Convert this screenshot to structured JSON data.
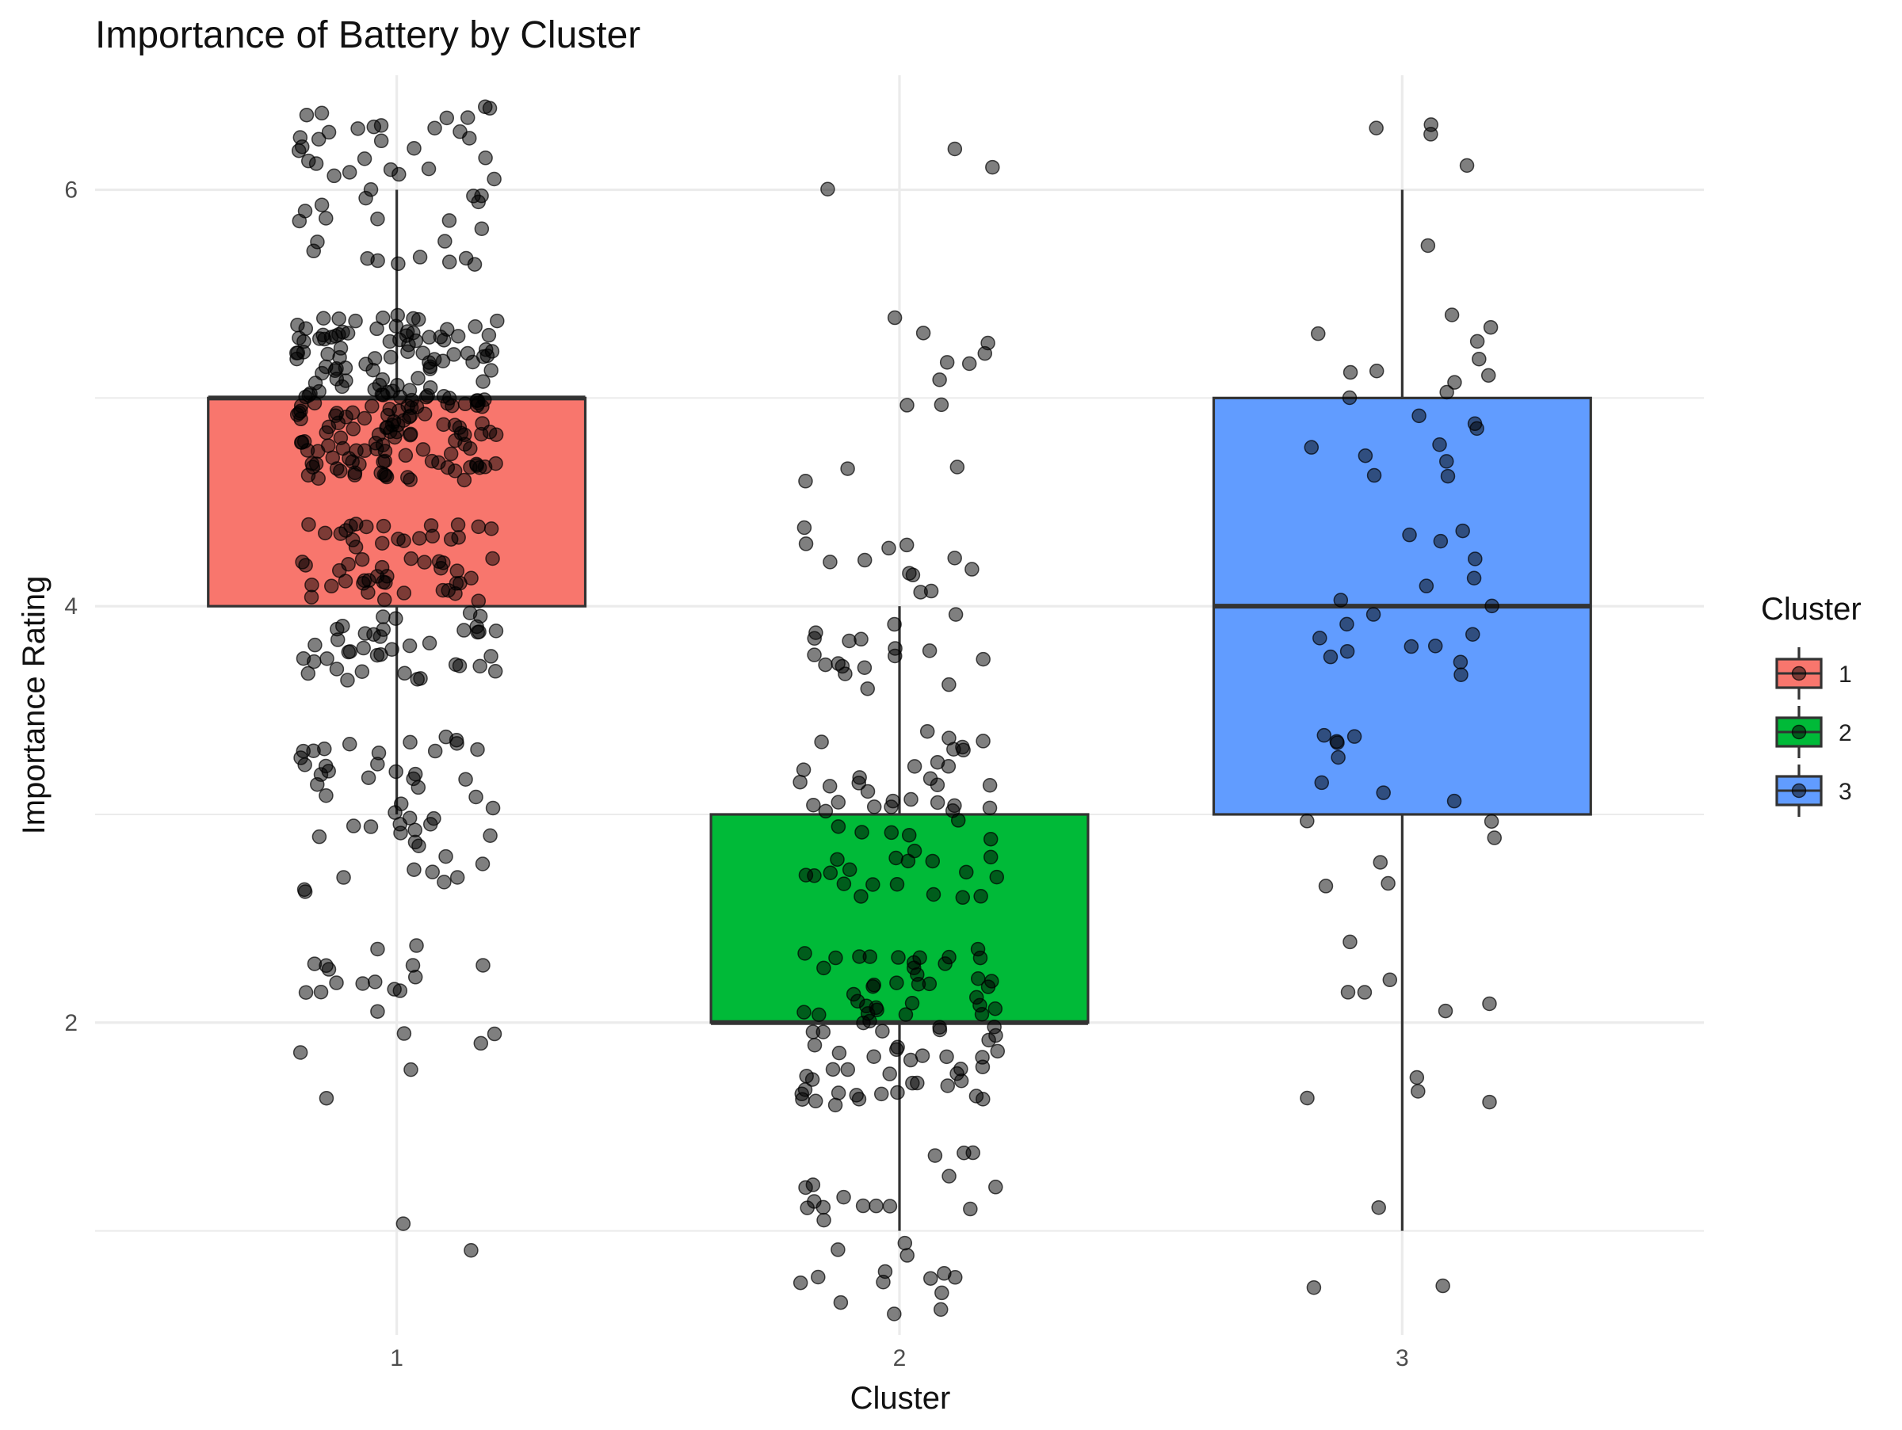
{
  "chart_data": {
    "type": "boxplot",
    "title": "Importance of Battery by Cluster",
    "xlabel": "Cluster",
    "ylabel": "Importance Rating",
    "categories": [
      "1",
      "2",
      "3"
    ],
    "y_ticks": [
      2,
      4,
      6
    ],
    "ylim": [
      0.5,
      6.55
    ],
    "grid": true,
    "legend": {
      "title": "Cluster",
      "placement": "right",
      "entries": [
        "1",
        "2",
        "3"
      ]
    },
    "series": [
      {
        "name": "1",
        "color": "#F8766D",
        "whisker_low": 3,
        "q1": 4,
        "median": 5,
        "q3": 5,
        "whisker_high": 6,
        "jitter_points": 420
      },
      {
        "name": "2",
        "color": "#00BA38",
        "whisker_low": 1,
        "q1": 2,
        "median": 2,
        "q3": 3,
        "whisker_high": 4,
        "jitter_points": 210
      },
      {
        "name": "3",
        "color": "#619CFF",
        "whisker_low": 1,
        "q1": 3,
        "median": 4,
        "q3": 5,
        "whisker_high": 6,
        "jitter_points": 70
      }
    ],
    "rating_distribution": [
      {
        "cluster": "1",
        "counts": {
          "1": 2,
          "2": 22,
          "3": 50,
          "4": 95,
          "5": 200,
          "6": 51
        }
      },
      {
        "cluster": "2",
        "counts": {
          "1": 30,
          "2": 80,
          "3": 55,
          "4": 30,
          "5": 12,
          "6": 3
        }
      },
      {
        "cluster": "3",
        "counts": {
          "1": 3,
          "2": 10,
          "3": 14,
          "4": 18,
          "5": 20,
          "6": 5
        }
      }
    ]
  }
}
